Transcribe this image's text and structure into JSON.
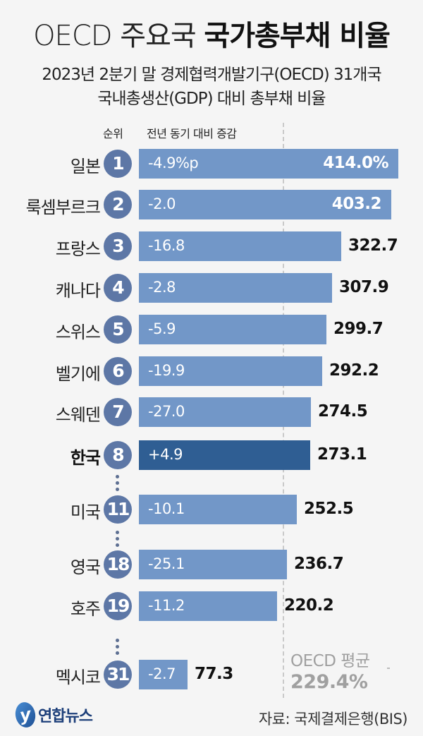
{
  "header": {
    "title_light": "OECD 주요국",
    "title_bold": "국가총부채 비율",
    "subtitle_line1": "2023년 2분기 말 경제협력개발기구(OECD) 31개국",
    "subtitle_line2": "국내총생산(GDP) 대비 총부채 비율"
  },
  "columns": {
    "rank": "순위",
    "change": "전년 동기 대비 증감"
  },
  "rows": [
    {
      "name": "일본",
      "rank": "1",
      "change": "-4.9%p",
      "value": "414.0%",
      "highlight": false
    },
    {
      "name": "룩셈부르크",
      "rank": "2",
      "change": "-2.0",
      "value": "403.2",
      "highlight": false
    },
    {
      "name": "프랑스",
      "rank": "3",
      "change": "-16.8",
      "value": "322.7",
      "highlight": false
    },
    {
      "name": "캐나다",
      "rank": "4",
      "change": "-2.8",
      "value": "307.9",
      "highlight": false
    },
    {
      "name": "스위스",
      "rank": "5",
      "change": "-5.9",
      "value": "299.7",
      "highlight": false
    },
    {
      "name": "벨기에",
      "rank": "6",
      "change": "-19.9",
      "value": "292.2",
      "highlight": false
    },
    {
      "name": "스웨덴",
      "rank": "7",
      "change": "-27.0",
      "value": "274.5",
      "highlight": false
    },
    {
      "name": "한국",
      "rank": "8",
      "change": "+4.9",
      "value": "273.1",
      "highlight": true
    },
    {
      "name": "미국",
      "rank": "11",
      "change": "-10.1",
      "value": "252.5",
      "highlight": false
    },
    {
      "name": "영국",
      "rank": "18",
      "change": "-25.1",
      "value": "236.7",
      "highlight": false
    },
    {
      "name": "호주",
      "rank": "19",
      "change": "-11.2",
      "value": "220.2",
      "highlight": false
    },
    {
      "name": "멕시코",
      "rank": "31",
      "change": "-2.7",
      "value": "77.3",
      "highlight": false
    }
  ],
  "average": {
    "label": "OECD 평균",
    "value": "229.4%"
  },
  "footer": {
    "logo_mark": "y",
    "logo_text": "연합뉴스",
    "source": "자료: 국제결제은행(BIS)"
  },
  "colors": {
    "bar": "#7297c8",
    "bar_highlight": "#2f5e93",
    "badge": "#5d77a6",
    "background": "#f5f5f5",
    "average_text": "#a0a0a0"
  },
  "chart_data": {
    "type": "bar",
    "orientation": "horizontal",
    "title": "OECD 주요국 국가총부채 비율",
    "subtitle": "2023년 2분기 말 경제협력개발기구(OECD) 31개국 국내총생산(GDP) 대비 총부채 비율",
    "categories": [
      "일본",
      "룩셈부르크",
      "프랑스",
      "캐나다",
      "스위스",
      "벨기에",
      "스웨덴",
      "한국",
      "미국",
      "영국",
      "호주",
      "멕시코"
    ],
    "ranks": [
      1,
      2,
      3,
      4,
      5,
      6,
      7,
      8,
      11,
      18,
      19,
      31
    ],
    "series": [
      {
        "name": "GDP 대비 총부채 비율 (%)",
        "values": [
          414.0,
          403.2,
          322.7,
          307.9,
          299.7,
          292.2,
          274.5,
          273.1,
          252.5,
          236.7,
          220.2,
          77.3
        ]
      },
      {
        "name": "전년 동기 대비 증감 (%p)",
        "values": [
          -4.9,
          -2.0,
          -16.8,
          -2.8,
          -5.9,
          -19.9,
          -27.0,
          4.9,
          -10.1,
          -25.1,
          -11.2,
          -2.7
        ]
      }
    ],
    "reference_line": {
      "label": "OECD 평균",
      "value": 229.4
    },
    "highlight": "한국",
    "xlabel": "",
    "ylabel": "",
    "xlim": [
      0,
      414.0
    ],
    "grid": false,
    "source": "자료: 국제결제은행(BIS)"
  }
}
